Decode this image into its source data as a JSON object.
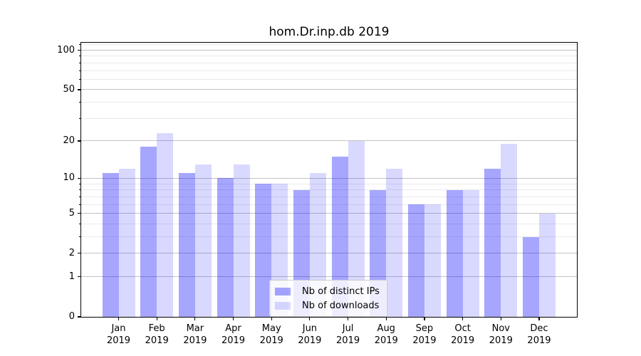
{
  "title": "hom.Dr.inp.db 2019",
  "chart_data": {
    "type": "bar",
    "title": "hom.Dr.inp.db 2019",
    "categories": [
      "Jan",
      "Feb",
      "Mar",
      "Apr",
      "May",
      "Jun",
      "Jul",
      "Aug",
      "Sep",
      "Oct",
      "Nov",
      "Dec"
    ],
    "category_year": "2019",
    "series": [
      {
        "name": "Nb of distinct IPs",
        "color": "rgba(0,0,255,0.35)",
        "values": [
          11,
          18,
          11,
          10,
          9,
          8,
          15,
          8,
          6,
          8,
          12,
          3
        ]
      },
      {
        "name": "Nb of downloads",
        "color": "rgba(0,0,255,0.15)",
        "values": [
          12,
          23,
          13,
          13,
          9,
          11,
          20,
          12,
          6,
          8,
          19,
          5
        ]
      }
    ],
    "xlabel": "",
    "ylabel": "",
    "yscale": "symlog (log1p)",
    "y_ticks": [
      100,
      50,
      20,
      10,
      5,
      2,
      1,
      0
    ],
    "y_minor_ticks": [
      110,
      90,
      80,
      70,
      60,
      40,
      30,
      9,
      8,
      7,
      6,
      4,
      3
    ],
    "ylim": [
      0,
      114
    ],
    "grid": true,
    "legend_position": "lower center",
    "colors": {
      "grid_major": "#c3c3c3",
      "grid_minor": "#eaeaea",
      "axis": "#000000",
      "legend_border": "#cccccc",
      "legend_bg": "rgba(255,255,255,0.8)"
    }
  }
}
